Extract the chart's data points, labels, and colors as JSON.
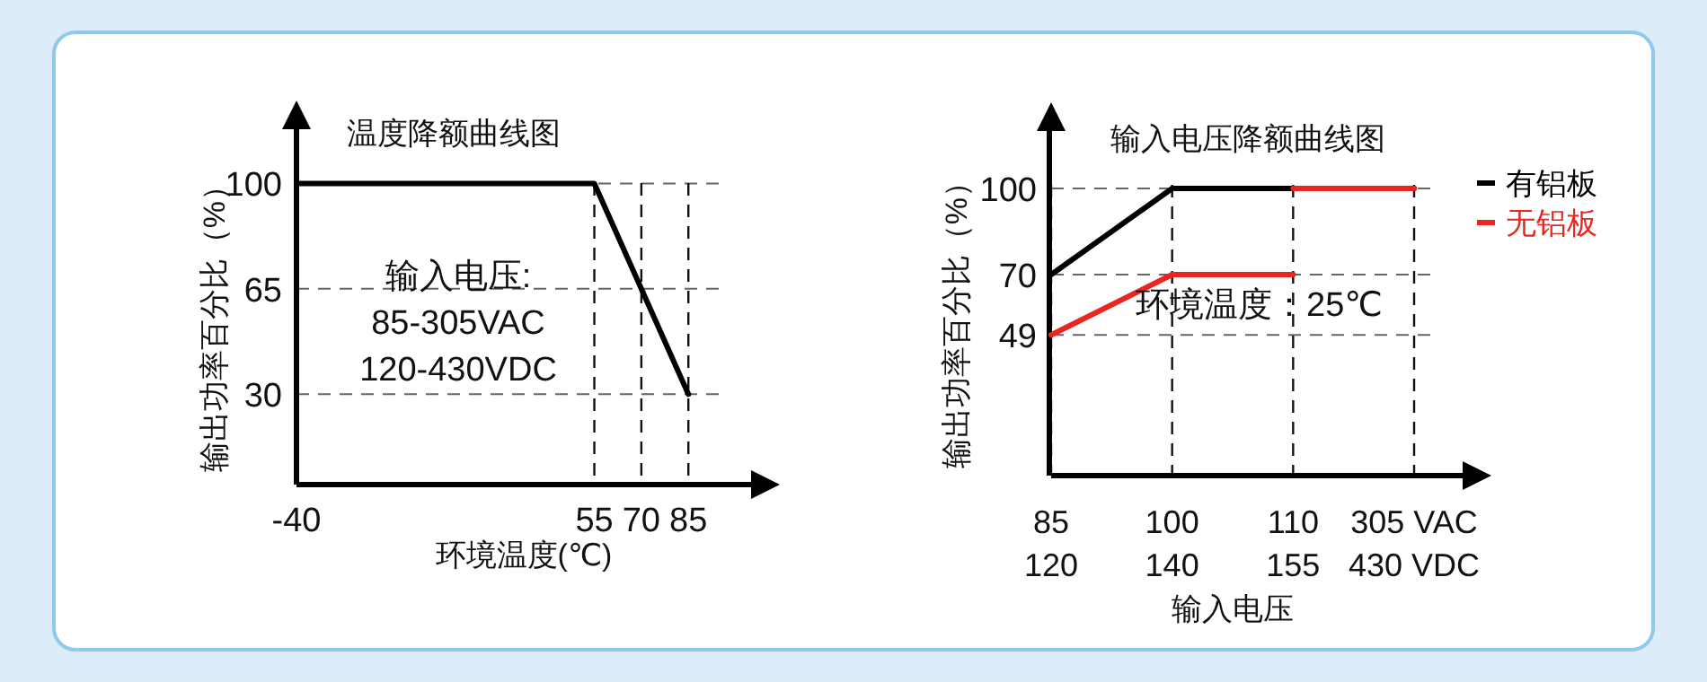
{
  "chart_data": [
    {
      "type": "line",
      "title": "温度降额曲线图",
      "xlabel": "环境温度(℃)",
      "ylabel": "输出功率百分比（%）",
      "x": [
        -40,
        55,
        85
      ],
      "series": [
        {
          "color": "#000000",
          "values": [
            100,
            100,
            30
          ]
        }
      ],
      "xlim": [
        -40,
        105
      ],
      "xticks": [
        -40,
        55,
        70,
        85
      ],
      "ylim": [
        0,
        118
      ],
      "yticks": [
        30,
        65,
        100
      ],
      "grid": true,
      "legend": false,
      "marker": "none",
      "line_style": "solid",
      "annotations": [
        "输入电压:",
        "85-305VAC",
        "120-430VDC"
      ]
    },
    {
      "type": "line",
      "title": "输入电压降额曲线图",
      "xlabel": "输入电压",
      "ylabel": "输出功率百分比（%）",
      "categories": [
        "85\n120",
        "100\n140",
        "110\n155",
        "305 VAC\n430 VDC"
      ],
      "series": [
        {
          "name": "有铝板",
          "color": "#000000",
          "values": [
            70,
            100,
            100,
            100
          ]
        },
        {
          "name": "无铝板",
          "color": "#e8251f",
          "values": [
            49,
            70,
            70,
            null
          ]
        },
        {
          "color": "#e8251f",
          "values": [
            null,
            null,
            100,
            100
          ]
        }
      ],
      "ylim": [
        0,
        120
      ],
      "yticks": [
        49,
        70,
        100
      ],
      "grid": true,
      "legend": "right",
      "marker": "none",
      "line_style": "solid",
      "annotations": [
        "环境温度：25℃"
      ]
    }
  ]
}
